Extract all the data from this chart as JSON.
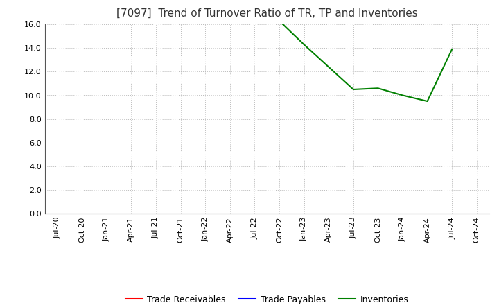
{
  "title": "[7097]  Trend of Turnover Ratio of TR, TP and Inventories",
  "title_fontsize": 11,
  "title_fontweight": "normal",
  "title_color": "#333333",
  "background_color": "#ffffff",
  "plot_bg_color": "#ffffff",
  "grid_color": "#bbbbbb",
  "ylim": [
    0.0,
    16.0
  ],
  "yticks": [
    0.0,
    2.0,
    4.0,
    6.0,
    8.0,
    10.0,
    12.0,
    14.0,
    16.0
  ],
  "x_labels": [
    "Jul-20",
    "Oct-20",
    "Jan-21",
    "Apr-21",
    "Jul-21",
    "Oct-21",
    "Jan-22",
    "Apr-22",
    "Jul-22",
    "Oct-22",
    "Jan-23",
    "Apr-23",
    "Jul-23",
    "Oct-23",
    "Jan-24",
    "Apr-24",
    "Jul-24",
    "Oct-24"
  ],
  "trade_receivables": {
    "color": "#ff0000",
    "label": "Trade Receivables",
    "data": {}
  },
  "trade_payables": {
    "color": "#0000ff",
    "label": "Trade Payables",
    "data": {}
  },
  "inventories": {
    "color": "#008000",
    "label": "Inventories",
    "data": {
      "Oct-22": 16.3,
      "Jan-23": 14.3,
      "Jul-23": 10.5,
      "Oct-23": 10.6,
      "Jan-24": 10.0,
      "Apr-24": 9.5,
      "Jul-24": 13.9
    }
  },
  "legend_fontsize": 9,
  "tick_fontsize": 8,
  "linewidth": 1.5
}
